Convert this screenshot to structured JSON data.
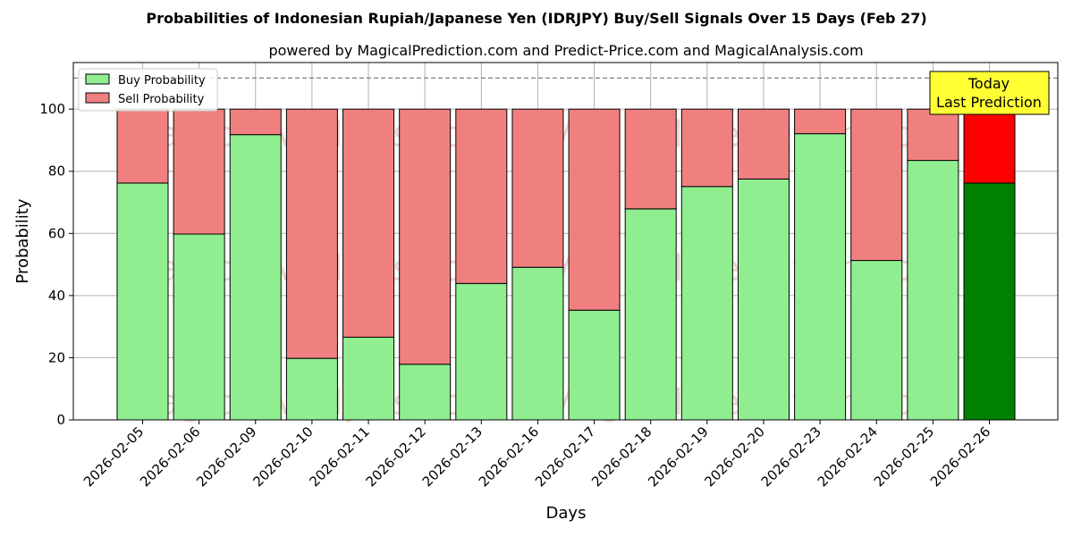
{
  "chart_data": {
    "type": "bar",
    "stacked": true,
    "title": "Probabilities of Indonesian Rupiah/Japanese Yen (IDRJPY) Buy/Sell Signals Over 15 Days (Feb 27)",
    "subtitle": "powered by MagicalPrediction.com and Predict-Price.com and MagicalAnalysis.com",
    "xlabel": "Days",
    "ylabel": "Probability",
    "ylim": [
      0,
      115
    ],
    "yticks": [
      0,
      20,
      40,
      60,
      80,
      100
    ],
    "grid": true,
    "legend_position": "top-left",
    "categories": [
      "2026-02-05",
      "2026-02-06",
      "2026-02-09",
      "2026-02-10",
      "2026-02-11",
      "2026-02-12",
      "2026-02-13",
      "2026-02-16",
      "2026-02-17",
      "2026-02-18",
      "2026-02-19",
      "2026-02-20",
      "2026-02-23",
      "2026-02-24",
      "2026-02-25",
      "2026-02-26"
    ],
    "series": [
      {
        "name": "Buy Probability",
        "color": "#90ee90",
        "values": [
          76.2,
          59.8,
          91.8,
          19.8,
          26.6,
          17.9,
          43.9,
          49.1,
          35.3,
          67.9,
          75.1,
          77.5,
          92.1,
          51.3,
          83.5,
          76.2
        ]
      },
      {
        "name": "Sell Probability",
        "color": "#f08080",
        "values": [
          23.8,
          40.2,
          8.2,
          80.2,
          73.4,
          82.1,
          56.1,
          50.9,
          64.7,
          32.1,
          24.9,
          22.5,
          7.9,
          48.7,
          16.5,
          23.8
        ]
      }
    ],
    "highlight": {
      "index": 15,
      "buy_color": "#008000",
      "sell_color": "#ff0000"
    },
    "reference_line": {
      "y": 110,
      "style": "dashed",
      "color": "#808080"
    },
    "annotation": {
      "lines": [
        "Today",
        "Last Prediction"
      ],
      "background": "#ffff33"
    },
    "watermarks": [
      "MagicalAnalysis.com",
      "MagicalPrediction.com"
    ]
  }
}
